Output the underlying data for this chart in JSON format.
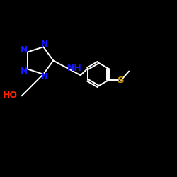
{
  "background_color": "#000000",
  "bond_color": "#ffffff",
  "N_color": "#1515ff",
  "OH_color": "#ff2200",
  "S_color": "#c8960a",
  "figsize": [
    2.5,
    2.5
  ],
  "dpi": 100,
  "xlim": [
    0.0,
    10.0
  ],
  "ylim": [
    0.0,
    10.0
  ]
}
